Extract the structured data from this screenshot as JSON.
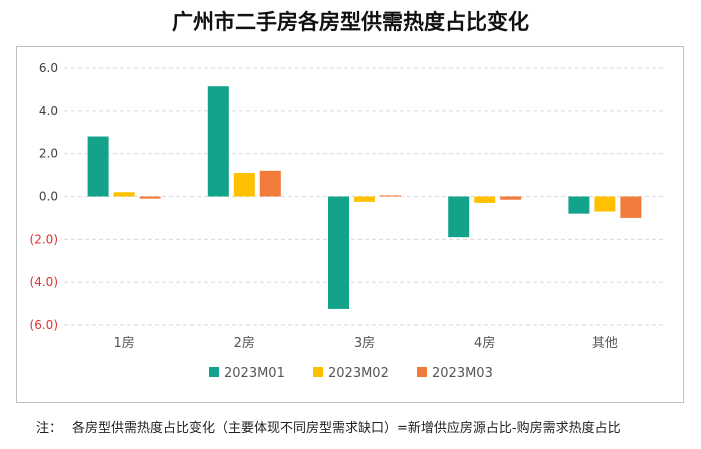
{
  "title": "广州市二手房各房型供需热度占比变化",
  "note": {
    "prefix": "注：",
    "text": "各房型供需热度占比变化（主要体现不同房型需求缺口）=新增供应房源占比-购房需求热度占比"
  },
  "colors": {
    "positive_tick": "#404040",
    "negative_tick": "#e03030",
    "grid": "#d9d9d9"
  },
  "chart_data": {
    "type": "bar",
    "categories": [
      "1房",
      "2房",
      "3房",
      "4房",
      "其他"
    ],
    "series": [
      {
        "name": "2023M01",
        "color": "#13a38a",
        "values": [
          2.8,
          5.15,
          -5.25,
          -1.9,
          -0.8
        ]
      },
      {
        "name": "2023M02",
        "color": "#ffc000",
        "values": [
          0.2,
          1.1,
          -0.25,
          -0.3,
          -0.7
        ]
      },
      {
        "name": "2023M03",
        "color": "#f07b3a",
        "values": [
          -0.1,
          1.2,
          0.05,
          -0.15,
          -1.0
        ]
      }
    ],
    "ylim": [
      -6,
      6
    ],
    "yticks": [
      6,
      4,
      2,
      0,
      -2,
      -4,
      -6
    ],
    "ytick_labels": [
      "6.0",
      "4.0",
      "2.0",
      "0.0",
      "(2.0)",
      "(4.0)",
      "(6.0)"
    ],
    "grid": true,
    "legend": "bottom"
  }
}
